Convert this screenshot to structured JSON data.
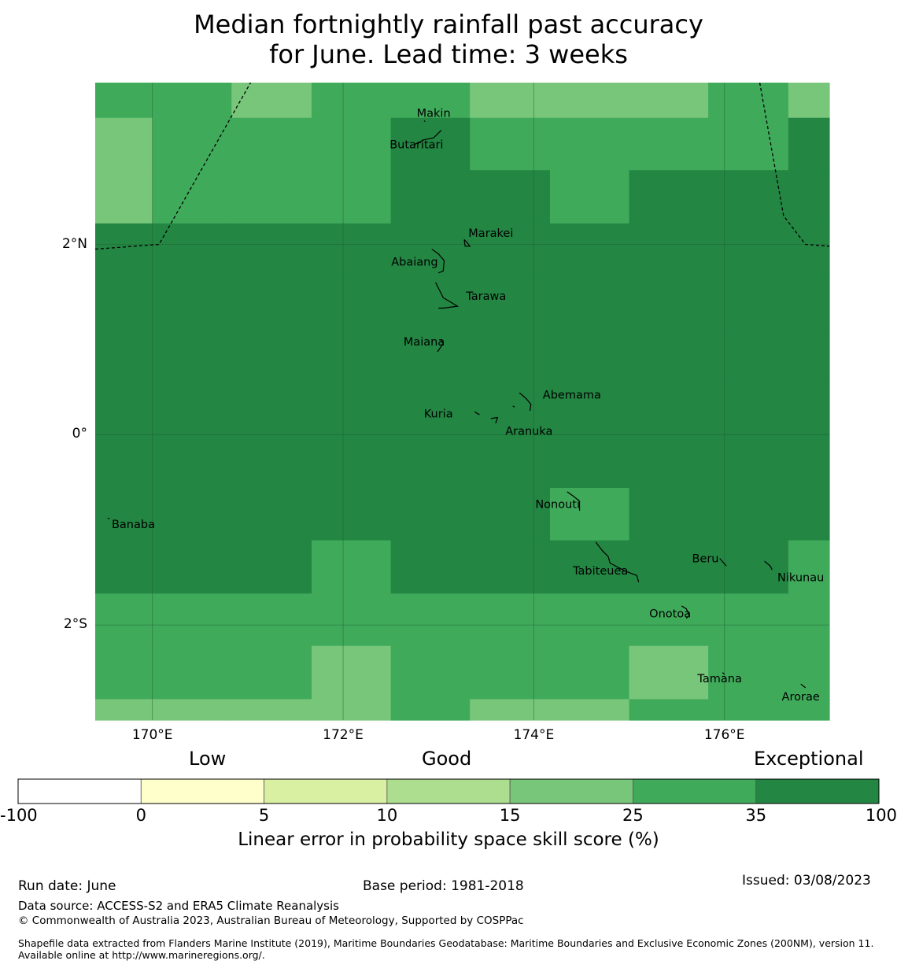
{
  "title_line1": "Median fortnightly rainfall past accuracy",
  "title_line2": "for June. Lead time: 3 weeks",
  "colors": {
    "exceptional_dark": "#238643",
    "skill_35_25": "#40aa5b",
    "skill_25_15": "#78c67a",
    "ocean_grid": "#1f5f30"
  },
  "map": {
    "lon_range": [
      169.4,
      177.1
    ],
    "lat_range": [
      -3.0,
      3.7
    ],
    "x_ticks": [
      {
        "lon": 170,
        "label": "170°E"
      },
      {
        "lon": 172,
        "label": "172°E"
      },
      {
        "lon": 174,
        "label": "174°E"
      },
      {
        "lon": 176,
        "label": "176°E"
      }
    ],
    "y_ticks": [
      {
        "lat": 2,
        "label": "2°N"
      },
      {
        "lat": 0,
        "label": "0°"
      },
      {
        "lat": -2,
        "label": "2°S"
      }
    ],
    "cell_lon_edges": [
      169.4,
      170.0,
      170.83,
      171.67,
      172.5,
      173.33,
      174.17,
      175.0,
      175.83,
      176.67,
      177.1
    ],
    "cell_lat_edges": [
      3.7,
      3.33,
      2.78,
      2.22,
      1.67,
      1.11,
      0.56,
      0.0,
      -0.56,
      -1.11,
      -1.67,
      -2.22,
      -2.78,
      -3.0
    ],
    "cell_levels": [
      [
        2,
        2,
        1,
        2,
        2,
        1,
        1,
        1,
        2,
        1
      ],
      [
        1,
        2,
        2,
        2,
        3,
        2,
        2,
        2,
        2,
        3
      ],
      [
        1,
        2,
        2,
        2,
        3,
        3,
        2,
        3,
        3,
        3
      ],
      [
        3,
        3,
        3,
        3,
        3,
        3,
        3,
        3,
        3,
        3
      ],
      [
        3,
        3,
        3,
        3,
        3,
        3,
        3,
        3,
        3,
        3
      ],
      [
        3,
        3,
        3,
        3,
        3,
        3,
        3,
        3,
        3,
        3
      ],
      [
        3,
        3,
        3,
        3,
        3,
        3,
        3,
        3,
        3,
        3
      ],
      [
        3,
        3,
        3,
        3,
        3,
        3,
        3,
        3,
        3,
        3
      ],
      [
        3,
        3,
        3,
        3,
        3,
        3,
        2,
        3,
        3,
        3
      ],
      [
        3,
        3,
        3,
        2,
        3,
        3,
        3,
        3,
        3,
        2
      ],
      [
        2,
        2,
        2,
        2,
        2,
        2,
        2,
        2,
        2,
        2
      ],
      [
        2,
        2,
        2,
        1,
        2,
        2,
        2,
        1,
        2,
        2
      ],
      [
        1,
        1,
        1,
        1,
        2,
        1,
        1,
        2,
        2,
        2
      ]
    ],
    "islands": [
      {
        "name": "Makin",
        "lon": 172.95,
        "lat": 3.38
      },
      {
        "name": "Butaritari",
        "lon": 172.77,
        "lat": 3.05
      },
      {
        "name": "Marakei",
        "lon": 173.55,
        "lat": 2.12
      },
      {
        "name": "Abaiang",
        "lon": 172.75,
        "lat": 1.82
      },
      {
        "name": "Tarawa",
        "lon": 173.5,
        "lat": 1.46
      },
      {
        "name": "Maiana",
        "lon": 172.85,
        "lat": 0.98
      },
      {
        "name": "Abemama",
        "lon": 174.4,
        "lat": 0.42
      },
      {
        "name": "Kuria",
        "lon": 173.0,
        "lat": 0.22
      },
      {
        "name": "Aranuka",
        "lon": 173.95,
        "lat": 0.04
      },
      {
        "name": "Banaba",
        "lon": 169.8,
        "lat": -0.94
      },
      {
        "name": "Nonouti",
        "lon": 174.25,
        "lat": -0.73
      },
      {
        "name": "Beru",
        "lon": 175.8,
        "lat": -1.3
      },
      {
        "name": "Tabiteuea",
        "lon": 174.7,
        "lat": -1.43
      },
      {
        "name": "Nikunau",
        "lon": 176.8,
        "lat": -1.5
      },
      {
        "name": "Onotoa",
        "lon": 175.43,
        "lat": -1.88
      },
      {
        "name": "Tamana",
        "lon": 175.95,
        "lat": -2.56
      },
      {
        "name": "Arorae",
        "lon": 176.8,
        "lat": -2.75
      }
    ]
  },
  "legend": {
    "categories": [
      "Low",
      "Good",
      "Exceptional"
    ],
    "ticks": [
      "-100",
      "0",
      "5",
      "10",
      "15",
      "25",
      "35",
      "100"
    ],
    "colors": [
      "#ffffff",
      "#ffffcc",
      "#d9f0a3",
      "#addd8e",
      "#78c67a",
      "#40aa5b",
      "#238643"
    ],
    "label": "Linear error in probability space skill score (%)"
  },
  "footer": {
    "run_date": "Run date: June",
    "base_period": "Base period: 1981-2018",
    "issued": "Issued: 03/08/2023",
    "data_source": "Data source: ACCESS-S2 and ERA5 Climate Reanalysis",
    "copyright": "© Commonwealth of Australia 2023, Australian Bureau of Meteorology, Supported by COSPPac",
    "shapefile": "Shapefile data extracted from Flanders Marine Institute (2019), Maritime Boundaries Geodatabase: Maritime Boundaries and Exclusive Economic Zones (200NM), version 11. Available online at http://www.marineregions.org/."
  }
}
